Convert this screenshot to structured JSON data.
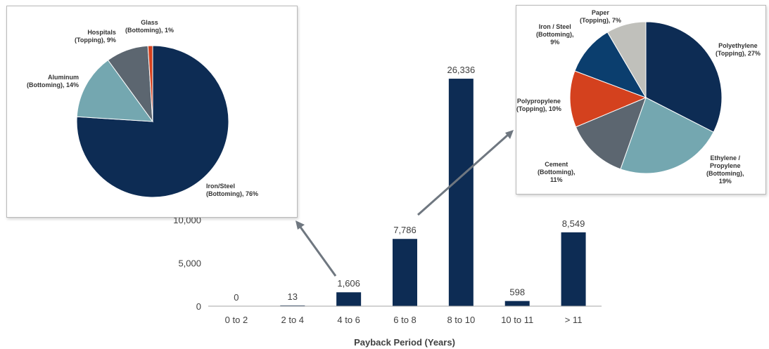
{
  "chart_data": [
    {
      "type": "bar",
      "title": "",
      "xlabel": "Payback Period (Years)",
      "ylabel": "",
      "categories": [
        "0 to 2",
        "2 to 4",
        "4 to 6",
        "6 to 8",
        "8 to 10",
        "10 to 11",
        "> 11"
      ],
      "values": [
        0,
        13,
        1606,
        7786,
        26336,
        598,
        8549
      ],
      "data_labels": [
        "0",
        "13",
        "1,606",
        "7,786",
        "26,336",
        "598",
        "8,549"
      ],
      "yticks": [
        0,
        5000,
        10000
      ],
      "ytick_labels": [
        "0",
        "5,000",
        "10,000"
      ],
      "ylim": [
        0,
        27000
      ],
      "color": "#0d2c54",
      "grid": false
    },
    {
      "type": "pie",
      "title": "",
      "slices": [
        {
          "label": "Iron/Steel\n(Bottoming), 76%",
          "value": 76,
          "color": "#0d2c54"
        },
        {
          "label": "Aluminum\n(Bottoming), 14%",
          "value": 14,
          "color": "#74a7b0"
        },
        {
          "label": "Hospitals\n(Topping), 9%",
          "value": 9,
          "color": "#5c6670"
        },
        {
          "label": "Glass\n(Bottoming), 1%",
          "value": 1,
          "color": "#d4411e"
        }
      ]
    },
    {
      "type": "pie",
      "title": "",
      "slices": [
        {
          "label": "Polyethylene\n(Topping), 27%",
          "value": 27,
          "color": "#0d2c54"
        },
        {
          "label": "Ethylene /\nPropylene\n(Bottoming),\n19%",
          "value": 19,
          "color": "#74a7b0"
        },
        {
          "label": "Cement\n(Bottoming),\n11%",
          "value": 11,
          "color": "#5c6670"
        },
        {
          "label": "Polypropylene\n(Topping), 10%",
          "value": 10,
          "color": "#d4411e"
        },
        {
          "label": "Iron / Steel\n(Bottoming),\n9%",
          "value": 9,
          "color": "#0b3e6e"
        },
        {
          "label": "Paper\n(Topping), 7%",
          "value": 7,
          "color": "#c0c0bb"
        }
      ]
    }
  ],
  "colors": {
    "arrow": "#6f7780",
    "axis": "#a6a6a6",
    "text": "#404040"
  }
}
